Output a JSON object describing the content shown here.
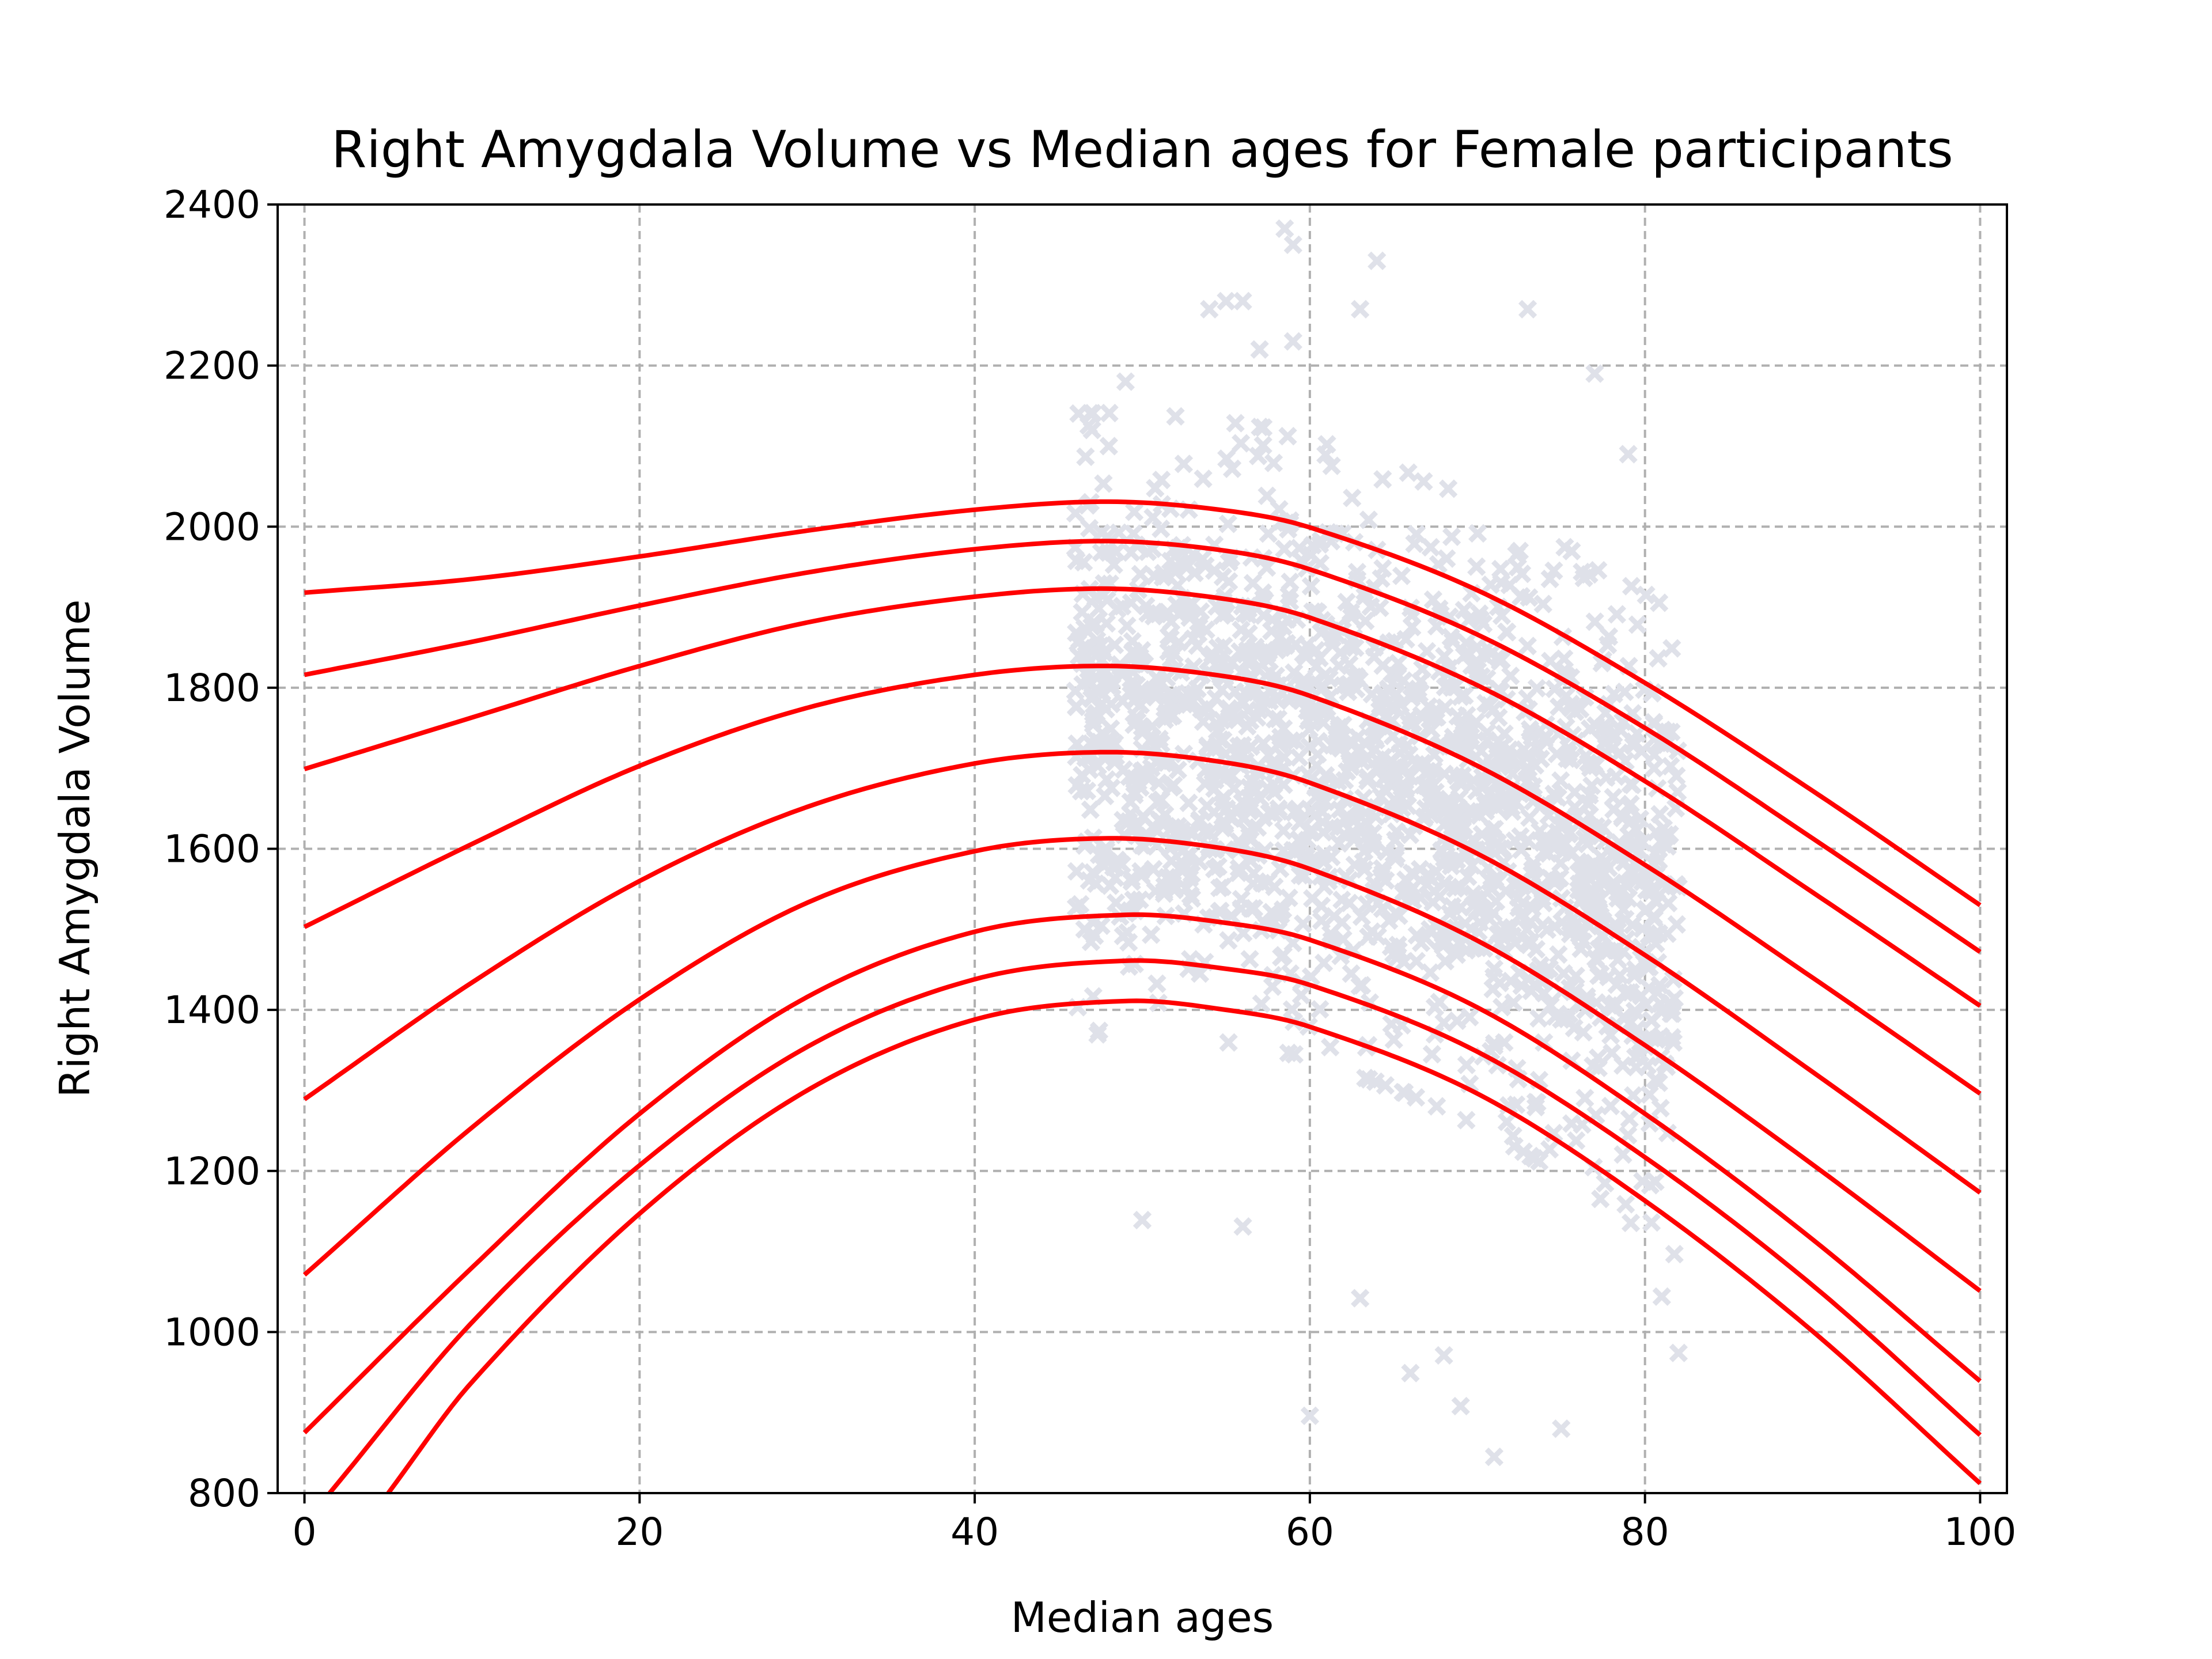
{
  "chart_data": {
    "type": "line",
    "title": "Right Amygdala Volume vs Median ages for Female participants",
    "xlabel": "Median ages",
    "ylabel": "Right Amygdala Volume",
    "xlim": [
      -1.6,
      101.6
    ],
    "ylim": [
      800,
      2400
    ],
    "xticks": [
      0,
      20,
      40,
      60,
      80,
      100
    ],
    "yticks": [
      800,
      1000,
      1200,
      1400,
      1600,
      1800,
      2000,
      2200,
      2400
    ],
    "grid": true,
    "curve_color": "#ff0000",
    "scatter_color": "#dfe1e9",
    "series": [
      {
        "x": [
          0,
          10,
          20,
          30,
          40,
          48,
          55,
          60,
          70,
          80,
          90,
          100
        ],
        "y": [
          1918,
          1935,
          1963,
          1995,
          2021,
          2031,
          2020,
          1999,
          1921,
          1806,
          1672,
          1530
        ]
      },
      {
        "x": [
          0,
          10,
          20,
          30,
          40,
          48,
          55,
          60,
          70,
          80,
          90,
          100
        ],
        "y": [
          1816,
          1857,
          1902,
          1943,
          1972,
          1982,
          1970,
          1947,
          1866,
          1750,
          1613,
          1472
        ]
      },
      {
        "x": [
          0,
          10,
          20,
          30,
          40,
          48,
          55,
          60,
          70,
          80,
          90,
          100
        ],
        "y": [
          1699,
          1763,
          1827,
          1881,
          1913,
          1923,
          1910,
          1887,
          1803,
          1684,
          1546,
          1405
        ]
      },
      {
        "x": [
          0,
          10,
          20,
          30,
          40,
          48,
          55,
          60,
          70,
          80,
          90,
          100
        ],
        "y": [
          1503,
          1606,
          1703,
          1775,
          1816,
          1827,
          1814,
          1790,
          1703,
          1580,
          1440,
          1296
        ]
      },
      {
        "x": [
          0,
          10,
          20,
          30,
          40,
          48,
          55,
          60,
          70,
          80,
          90,
          100
        ],
        "y": [
          1289,
          1434,
          1560,
          1652,
          1706,
          1720,
          1707,
          1682,
          1594,
          1468,
          1323,
          1173
        ]
      },
      {
        "x": [
          0,
          10,
          20,
          30,
          40,
          48,
          55,
          60,
          70,
          80,
          90,
          100
        ],
        "y": [
          1071,
          1254,
          1413,
          1533,
          1597,
          1613,
          1600,
          1575,
          1486,
          1356,
          1208,
          1051
        ]
      },
      {
        "x": [
          0,
          10,
          20,
          30,
          40,
          49,
          55,
          60,
          70,
          80,
          90,
          100
        ],
        "y": [
          875,
          1080,
          1271,
          1416,
          1497,
          1518,
          1508,
          1487,
          1403,
          1271,
          1115,
          939
        ]
      },
      {
        "x": [
          1.5,
          10,
          20,
          30,
          40,
          49,
          55,
          60,
          70,
          80,
          90,
          100
        ],
        "y": [
          800,
          1012,
          1207,
          1354,
          1438,
          1461,
          1451,
          1431,
          1348,
          1217,
          1058,
          872
        ]
      },
      {
        "x": [
          5,
          10,
          20,
          30,
          40,
          49,
          55,
          60,
          70,
          80,
          90,
          100
        ],
        "y": [
          800,
          938,
          1147,
          1300,
          1388,
          1411,
          1400,
          1379,
          1296,
          1163,
          1001,
          812
        ]
      }
    ],
    "scatter": {
      "n_points": 1800,
      "cloud_x": [
        46,
        82
      ],
      "outliers": [
        [
          58.5,
          2370
        ],
        [
          59,
          2350
        ],
        [
          64,
          2330
        ],
        [
          63,
          2270
        ],
        [
          55,
          2280
        ],
        [
          56,
          2280
        ],
        [
          54,
          2270
        ],
        [
          73,
          2270
        ],
        [
          57,
          2220
        ],
        [
          59,
          2230
        ],
        [
          77,
          2190
        ],
        [
          49,
          2180
        ],
        [
          79,
          2090
        ],
        [
          47,
          2120
        ],
        [
          48,
          2100
        ],
        [
          50,
          1139
        ],
        [
          56,
          1131
        ],
        [
          60,
          896
        ],
        [
          71,
          845
        ],
        [
          75,
          880
        ],
        [
          69,
          908
        ],
        [
          66,
          949
        ],
        [
          68,
          971
        ],
        [
          82,
          974
        ],
        [
          63,
          1042
        ],
        [
          81,
          1044
        ]
      ]
    }
  }
}
